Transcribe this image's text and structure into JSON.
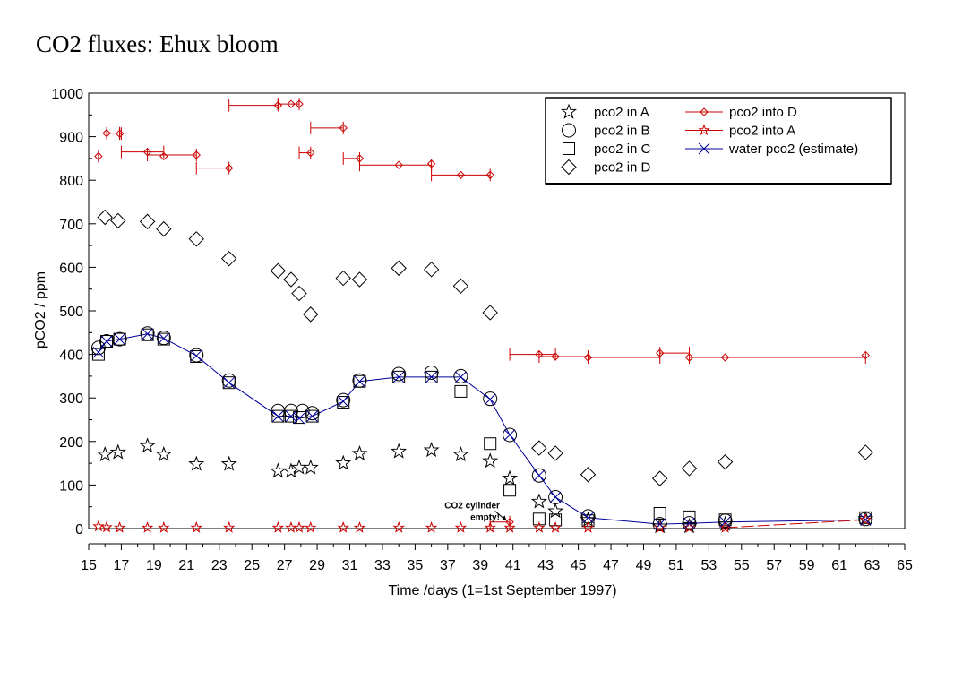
{
  "title": "CO2 fluxes: Ehux bloom",
  "chart_data": {
    "type": "scatter",
    "title": "CO2 fluxes: Ehux bloom",
    "xlabel": "Time /days (1=1st September 1997)",
    "ylabel": "pCO2 / ppm",
    "xlim": [
      15,
      65
    ],
    "ylim": [
      0,
      1000
    ],
    "xticks": [
      15,
      17,
      19,
      21,
      23,
      25,
      27,
      29,
      31,
      33,
      35,
      37,
      39,
      41,
      43,
      45,
      47,
      49,
      51,
      53,
      55,
      57,
      59,
      61,
      63,
      65
    ],
    "xtick_labels": [
      "15",
      "17",
      "19",
      "21",
      "23",
      "25",
      "27",
      "29",
      "31",
      "33",
      "35",
      "37",
      "39",
      "41",
      "43",
      "45",
      "47",
      "49",
      "51",
      "53",
      "55",
      "57",
      "59",
      "61",
      "63",
      "65"
    ],
    "yticks": [
      0,
      100,
      200,
      300,
      400,
      500,
      600,
      700,
      800,
      900,
      1000
    ],
    "ytick_labels": [
      "0",
      "100",
      "200",
      "300",
      "400",
      "500",
      "600",
      "700",
      "800",
      "900",
      "1000"
    ],
    "grid": false,
    "legend_position": "top-right",
    "legend": [
      {
        "label": "pco2 in A",
        "marker": "star",
        "color": "#000000",
        "line": false
      },
      {
        "label": "pco2 in B",
        "marker": "circle",
        "color": "#000000",
        "line": false
      },
      {
        "label": "pco2 in C",
        "marker": "square",
        "color": "#000000",
        "line": false
      },
      {
        "label": "pco2 in D",
        "marker": "diamond",
        "color": "#000000",
        "line": false
      },
      {
        "label": "pco2 into D",
        "marker": "diamond",
        "color": "#cc0000",
        "line": true
      },
      {
        "label": "pco2 into A",
        "marker": "star",
        "color": "#cc0000",
        "line": true
      },
      {
        "label": "water pco2 (estimate)",
        "marker": "x",
        "color": "#000099",
        "line": true
      }
    ],
    "series": [
      {
        "name": "pco2 in A",
        "marker": "star",
        "color": "#000000",
        "x": [
          16.0,
          16.8,
          18.6,
          19.6,
          21.6,
          23.6,
          26.6,
          27.4,
          27.9,
          28.6,
          30.6,
          31.6,
          34.0,
          36.0,
          37.8,
          39.6,
          40.8,
          42.6,
          43.6,
          45.6,
          50.0,
          51.8,
          54.0,
          62.6
        ],
        "y": [
          170,
          175,
          190,
          170,
          148,
          148,
          132,
          132,
          140,
          140,
          150,
          172,
          177,
          180,
          170,
          155,
          115,
          62,
          40,
          20,
          5,
          5,
          10,
          22
        ]
      },
      {
        "name": "pco2 in B",
        "marker": "circle",
        "color": "#000000",
        "x": [
          15.6,
          16.1,
          16.9,
          18.6,
          19.6,
          21.6,
          23.6,
          26.6,
          27.4,
          28.1,
          28.7,
          30.6,
          31.6,
          34.0,
          36.0,
          37.8,
          39.6,
          40.8,
          42.6,
          43.6,
          45.6,
          50.0,
          51.8,
          54.0,
          62.6
        ],
        "y": [
          415,
          430,
          435,
          448,
          438,
          398,
          340,
          270,
          270,
          270,
          265,
          295,
          340,
          355,
          358,
          350,
          298,
          215,
          122,
          72,
          28,
          10,
          12,
          18,
          22
        ]
      },
      {
        "name": "pco2 in C",
        "marker": "square",
        "color": "#000000",
        "x": [
          15.6,
          16.1,
          16.9,
          18.6,
          19.6,
          21.6,
          23.6,
          26.6,
          27.4,
          27.9,
          28.7,
          30.6,
          31.6,
          34.0,
          36.0,
          37.8,
          39.6,
          40.8,
          42.6,
          43.6,
          45.6,
          50.0,
          51.8,
          54.0,
          62.6
        ],
        "y": [
          400,
          430,
          435,
          445,
          435,
          395,
          335,
          258,
          258,
          255,
          258,
          290,
          338,
          348,
          348,
          315,
          195,
          88,
          22,
          20,
          18,
          35,
          27,
          20,
          25
        ]
      },
      {
        "name": "pco2 in D",
        "marker": "diamond",
        "color": "#000000",
        "x": [
          16.0,
          16.8,
          18.6,
          19.6,
          21.6,
          23.6,
          26.6,
          27.4,
          27.9,
          28.6,
          30.6,
          31.6,
          34.0,
          36.0,
          37.8,
          39.6,
          42.6,
          43.6,
          45.6,
          50.0,
          51.8,
          54.0,
          62.6
        ],
        "y": [
          715,
          707,
          705,
          688,
          665,
          620,
          592,
          572,
          540,
          492,
          575,
          572,
          598,
          595,
          557,
          496,
          185,
          173,
          124,
          115,
          138,
          153,
          175
        ]
      },
      {
        "name": "pco2 into D",
        "marker": "diamond",
        "color": "#cc0000",
        "x": [
          15.6,
          16.1,
          16.9,
          18.6,
          19.6,
          21.6,
          23.6,
          26.6,
          27.4,
          27.9,
          28.6,
          30.6,
          31.6,
          34.0,
          36.0,
          37.8,
          39.6,
          40.8,
          42.6,
          43.6,
          45.6,
          50.0,
          51.8,
          54.0,
          62.6
        ],
        "y": [
          855,
          908,
          907,
          865,
          855,
          858,
          828,
          972,
          975,
          975,
          863,
          920,
          850,
          835,
          838,
          812,
          812,
          15,
          400,
          395,
          393,
          403,
          393,
          393,
          398
        ]
      },
      {
        "name": "pco2 into A",
        "marker": "star",
        "color": "#cc0000",
        "x": [
          15.6,
          16.1,
          16.9,
          18.6,
          19.6,
          21.6,
          23.6,
          26.6,
          27.4,
          27.9,
          28.6,
          30.6,
          31.6,
          34.0,
          36.0,
          37.8,
          39.6,
          40.8,
          42.6,
          43.6,
          45.6,
          50.0,
          51.8,
          54.0,
          62.6
        ],
        "y": [
          5,
          3,
          2,
          2,
          2,
          2,
          2,
          2,
          2,
          2,
          2,
          2,
          2,
          2,
          2,
          2,
          2,
          2,
          2,
          2,
          2,
          2,
          2,
          2,
          20
        ]
      },
      {
        "name": "water pco2 (estimate)",
        "marker": "x",
        "color": "#000099",
        "x": [
          15.6,
          16.1,
          16.9,
          18.6,
          19.6,
          21.6,
          23.6,
          26.6,
          27.4,
          27.9,
          28.7,
          30.6,
          31.6,
          34.0,
          36.0,
          37.8,
          39.6,
          40.8,
          42.6,
          43.6,
          45.6,
          50.0,
          51.8,
          54.0,
          62.6
        ],
        "y": [
          405,
          430,
          435,
          447,
          437,
          397,
          335,
          258,
          258,
          253,
          258,
          292,
          338,
          348,
          348,
          348,
          297,
          215,
          122,
          72,
          25,
          10,
          12,
          15,
          20
        ]
      }
    ],
    "error_bars_into_D": [
      {
        "x1": 15.6,
        "x2": 15.6,
        "y": 855
      },
      {
        "x1": 16.1,
        "x2": 16.9,
        "y": 908
      },
      {
        "x1": 16.9,
        "x2": 17.0,
        "y": 907
      },
      {
        "x1": 17.0,
        "x2": 19.6,
        "y": 865
      },
      {
        "x1": 18.6,
        "x2": 21.6,
        "y": 858
      },
      {
        "x1": 21.6,
        "x2": 23.6,
        "y": 828
      },
      {
        "x1": 23.6,
        "x2": 26.6,
        "y": 972
      },
      {
        "x1": 26.6,
        "x2": 27.9,
        "y": 975
      },
      {
        "x1": 27.9,
        "x2": 28.6,
        "y": 863
      },
      {
        "x1": 28.6,
        "x2": 30.6,
        "y": 920
      },
      {
        "x1": 30.6,
        "x2": 31.6,
        "y": 850
      },
      {
        "x1": 31.6,
        "x2": 36.0,
        "y": 835
      },
      {
        "x1": 36.0,
        "x2": 39.6,
        "y": 812
      },
      {
        "x1": 39.6,
        "x2": 40.8,
        "y": 15
      },
      {
        "x1": 40.8,
        "x2": 43.6,
        "y": 400
      },
      {
        "x1": 42.6,
        "x2": 45.6,
        "y": 395
      },
      {
        "x1": 45.6,
        "x2": 50.0,
        "y": 393
      },
      {
        "x1": 50.0,
        "x2": 51.8,
        "y": 403
      },
      {
        "x1": 51.8,
        "x2": 62.6,
        "y": 393
      }
    ],
    "annotations": [
      {
        "text": "CO2 cylinder",
        "x": 40.3,
        "y": 55
      },
      {
        "text": "empty!",
        "x": 40.3,
        "y": 28
      }
    ]
  }
}
